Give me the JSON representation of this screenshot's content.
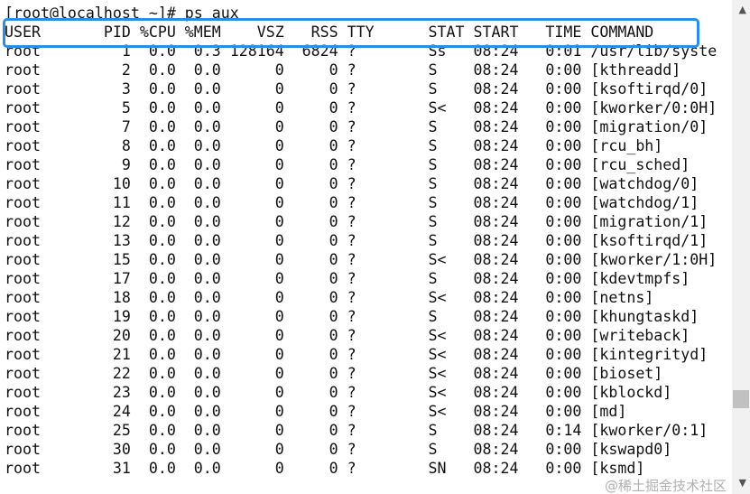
{
  "prompt": "[root@localhost ~]# ps aux",
  "columns": [
    "USER",
    "PID",
    "%CPU",
    "%MEM",
    "VSZ",
    "RSS",
    "TTY",
    "STAT",
    "START",
    "TIME",
    "COMMAND"
  ],
  "rows": [
    [
      "root",
      "1",
      "0.0",
      "0.3",
      "128164",
      "6824",
      "?",
      "Ss",
      "08:24",
      "0:01",
      "/usr/lib/syste"
    ],
    [
      "root",
      "2",
      "0.0",
      "0.0",
      "0",
      "0",
      "?",
      "S",
      "08:24",
      "0:00",
      "[kthreadd]"
    ],
    [
      "root",
      "3",
      "0.0",
      "0.0",
      "0",
      "0",
      "?",
      "S",
      "08:24",
      "0:00",
      "[ksoftirqd/0]"
    ],
    [
      "root",
      "5",
      "0.0",
      "0.0",
      "0",
      "0",
      "?",
      "S<",
      "08:24",
      "0:00",
      "[kworker/0:0H]"
    ],
    [
      "root",
      "7",
      "0.0",
      "0.0",
      "0",
      "0",
      "?",
      "S",
      "08:24",
      "0:00",
      "[migration/0]"
    ],
    [
      "root",
      "8",
      "0.0",
      "0.0",
      "0",
      "0",
      "?",
      "S",
      "08:24",
      "0:00",
      "[rcu_bh]"
    ],
    [
      "root",
      "9",
      "0.0",
      "0.0",
      "0",
      "0",
      "?",
      "S",
      "08:24",
      "0:00",
      "[rcu_sched]"
    ],
    [
      "root",
      "10",
      "0.0",
      "0.0",
      "0",
      "0",
      "?",
      "S",
      "08:24",
      "0:00",
      "[watchdog/0]"
    ],
    [
      "root",
      "11",
      "0.0",
      "0.0",
      "0",
      "0",
      "?",
      "S",
      "08:24",
      "0:00",
      "[watchdog/1]"
    ],
    [
      "root",
      "12",
      "0.0",
      "0.0",
      "0",
      "0",
      "?",
      "S",
      "08:24",
      "0:00",
      "[migration/1]"
    ],
    [
      "root",
      "13",
      "0.0",
      "0.0",
      "0",
      "0",
      "?",
      "S",
      "08:24",
      "0:00",
      "[ksoftirqd/1]"
    ],
    [
      "root",
      "15",
      "0.0",
      "0.0",
      "0",
      "0",
      "?",
      "S<",
      "08:24",
      "0:00",
      "[kworker/1:0H]"
    ],
    [
      "root",
      "17",
      "0.0",
      "0.0",
      "0",
      "0",
      "?",
      "S",
      "08:24",
      "0:00",
      "[kdevtmpfs]"
    ],
    [
      "root",
      "18",
      "0.0",
      "0.0",
      "0",
      "0",
      "?",
      "S<",
      "08:24",
      "0:00",
      "[netns]"
    ],
    [
      "root",
      "19",
      "0.0",
      "0.0",
      "0",
      "0",
      "?",
      "S",
      "08:24",
      "0:00",
      "[khungtaskd]"
    ],
    [
      "root",
      "20",
      "0.0",
      "0.0",
      "0",
      "0",
      "?",
      "S<",
      "08:24",
      "0:00",
      "[writeback]"
    ],
    [
      "root",
      "21",
      "0.0",
      "0.0",
      "0",
      "0",
      "?",
      "S<",
      "08:24",
      "0:00",
      "[kintegrityd]"
    ],
    [
      "root",
      "22",
      "0.0",
      "0.0",
      "0",
      "0",
      "?",
      "S<",
      "08:24",
      "0:00",
      "[bioset]"
    ],
    [
      "root",
      "23",
      "0.0",
      "0.0",
      "0",
      "0",
      "?",
      "S<",
      "08:24",
      "0:00",
      "[kblockd]"
    ],
    [
      "root",
      "24",
      "0.0",
      "0.0",
      "0",
      "0",
      "?",
      "S<",
      "08:24",
      "0:00",
      "[md]"
    ],
    [
      "root",
      "25",
      "0.0",
      "0.0",
      "0",
      "0",
      "?",
      "S",
      "08:24",
      "0:14",
      "[kworker/0:1]"
    ],
    [
      "root",
      "30",
      "0.0",
      "0.0",
      "0",
      "0",
      "?",
      "S",
      "08:24",
      "0:00",
      "[kswapd0]"
    ],
    [
      "root",
      "31",
      "0.0",
      "0.0",
      "0",
      "0",
      "?",
      "SN",
      "08:24",
      "0:00",
      "[ksmd]"
    ]
  ],
  "highlight_color": "#2a8de8",
  "watermark": "@稀土掘金技术社区"
}
